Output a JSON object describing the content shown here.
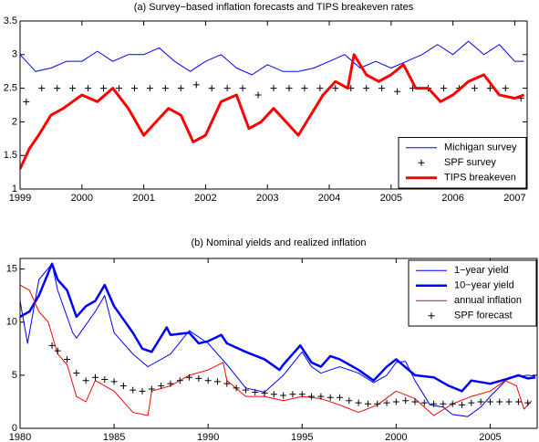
{
  "chart_data": [
    {
      "type": "line",
      "title": "(a) Survey−based inflation forecasts and TIPS breakeven rates",
      "xlim": [
        1999,
        2007.2
      ],
      "ylim": [
        1,
        3.5
      ],
      "xticks": [
        1999,
        2000,
        2001,
        2002,
        2003,
        2004,
        2005,
        2006,
        2007
      ],
      "yticks": [
        1,
        1.5,
        2,
        2.5,
        3,
        3.5
      ],
      "legend": "lower right",
      "series": [
        {
          "name": "Michigan survey",
          "color": "#0000ff",
          "linewidth": 1,
          "marker": "none",
          "x": [
            1999,
            1999.25,
            1999.5,
            1999.75,
            2000,
            2000.25,
            2000.5,
            2000.75,
            2001,
            2001.25,
            2001.5,
            2001.75,
            2002,
            2002.25,
            2002.5,
            2002.75,
            2003,
            2003.25,
            2003.5,
            2003.75,
            2004,
            2004.25,
            2004.5,
            2004.75,
            2005,
            2005.25,
            2005.5,
            2005.75,
            2006,
            2006.25,
            2006.5,
            2006.75,
            2007,
            2007.15
          ],
          "values": [
            3.0,
            2.75,
            2.8,
            2.9,
            2.9,
            3.05,
            2.9,
            3.0,
            3.0,
            3.1,
            2.9,
            2.75,
            2.9,
            3.0,
            2.8,
            2.7,
            2.85,
            2.75,
            2.75,
            2.8,
            2.9,
            3.0,
            2.8,
            2.9,
            2.8,
            2.9,
            3.0,
            3.15,
            3.0,
            3.2,
            3.0,
            3.15,
            2.9,
            2.9
          ]
        },
        {
          "name": "SPF survey",
          "color": "#000000",
          "linewidth": 0,
          "marker": "+",
          "x": [
            1999.1,
            1999.35,
            1999.6,
            1999.85,
            2000.1,
            2000.35,
            2000.6,
            2000.85,
            2001.1,
            2001.35,
            2001.6,
            2001.85,
            2002.1,
            2002.35,
            2002.6,
            2002.85,
            2003.1,
            2003.35,
            2003.6,
            2003.85,
            2004.1,
            2004.35,
            2004.6,
            2004.85,
            2005.1,
            2005.35,
            2005.6,
            2005.85,
            2006.1,
            2006.35,
            2006.6,
            2006.85,
            2007.1
          ],
          "values": [
            2.3,
            2.5,
            2.5,
            2.5,
            2.5,
            2.5,
            2.5,
            2.5,
            2.5,
            2.5,
            2.5,
            2.55,
            2.5,
            2.5,
            2.5,
            2.4,
            2.5,
            2.5,
            2.5,
            2.5,
            2.5,
            2.5,
            2.5,
            2.5,
            2.45,
            2.5,
            2.5,
            2.5,
            2.5,
            2.5,
            2.5,
            2.5,
            2.35
          ]
        },
        {
          "name": "TIPS breakeven",
          "color": "#ff0000",
          "linewidth": 3,
          "marker": "none",
          "x": [
            1999,
            1999.15,
            1999.3,
            1999.5,
            1999.7,
            2000,
            2000.25,
            2000.5,
            2000.75,
            2001,
            2001.2,
            2001.4,
            2001.6,
            2001.8,
            2002,
            2002.25,
            2002.5,
            2002.7,
            2002.9,
            2003.1,
            2003.3,
            2003.5,
            2003.7,
            2003.9,
            2004.1,
            2004.3,
            2004.4,
            2004.6,
            2004.8,
            2005,
            2005.2,
            2005.4,
            2005.6,
            2005.8,
            2006,
            2006.25,
            2006.5,
            2006.75,
            2007,
            2007.15
          ],
          "values": [
            1.3,
            1.6,
            1.8,
            2.1,
            2.2,
            2.4,
            2.3,
            2.5,
            2.2,
            1.8,
            2.0,
            2.2,
            2.1,
            1.7,
            1.8,
            2.3,
            2.4,
            1.9,
            2.0,
            2.2,
            2.0,
            1.8,
            2.1,
            2.4,
            2.6,
            2.5,
            3.0,
            2.7,
            2.6,
            2.7,
            2.85,
            2.5,
            2.5,
            2.3,
            2.4,
            2.6,
            2.7,
            2.4,
            2.35,
            2.4
          ]
        }
      ]
    },
    {
      "type": "line",
      "title": "(b) Nominal yields and realized inflation",
      "xlim": [
        1980,
        2007.5
      ],
      "ylim": [
        0,
        16
      ],
      "xticks": [
        1980,
        1985,
        1990,
        1995,
        2000,
        2005
      ],
      "yticks": [
        0,
        5,
        10,
        15
      ],
      "legend": "upper right",
      "series": [
        {
          "name": "1−year yield",
          "color": "#0000ff",
          "linewidth": 1,
          "marker": "none",
          "x": [
            1980,
            1980.4,
            1981,
            1981.7,
            1982,
            1982.8,
            1983,
            1984,
            1984.5,
            1985,
            1986,
            1986.8,
            1987,
            1988,
            1989,
            1990,
            1991,
            1992,
            1993,
            1994,
            1995,
            1995.5,
            1996,
            1997,
            1998,
            1998.8,
            1999.5,
            2000,
            2000.5,
            2001,
            2001.8,
            2002.5,
            2003,
            2003.8,
            2004.5,
            2005,
            2006,
            2007,
            2007.4
          ],
          "values": [
            12,
            8,
            14,
            15.5,
            13,
            9,
            8.5,
            11,
            12.5,
            9,
            7,
            5.8,
            6,
            7,
            9.2,
            8,
            6,
            3.8,
            3.4,
            5,
            7.2,
            5.8,
            5.2,
            5.8,
            5.2,
            4.3,
            5,
            6.2,
            6.3,
            4.5,
            2.2,
            2,
            1.3,
            1.1,
            2,
            3,
            4.8,
            5,
            4.9
          ]
        },
        {
          "name": "10−year yield",
          "color": "#0000ff",
          "linewidth": 2.5,
          "marker": "none",
          "x": [
            1980,
            1980.5,
            1981,
            1981.7,
            1982,
            1982.5,
            1983,
            1983.5,
            1984,
            1984.5,
            1985,
            1986,
            1986.5,
            1987,
            1987.8,
            1988,
            1989,
            1989.5,
            1990,
            1990.7,
            1991,
            1992,
            1993,
            1993.8,
            1994,
            1994.9,
            1995.5,
            1996,
            1996.5,
            1997,
            1998,
            1998.8,
            1999.5,
            2000,
            2001,
            2002,
            2002.8,
            2003.5,
            2004,
            2005,
            2006,
            2006.5,
            2007,
            2007.4
          ],
          "values": [
            10.5,
            11,
            12.5,
            15.5,
            14,
            13,
            10.5,
            11.5,
            12,
            13.5,
            11.5,
            9,
            7.5,
            7.2,
            9.5,
            8.8,
            9,
            8,
            8.2,
            8.8,
            8,
            7.2,
            6.5,
            5.5,
            6,
            7.8,
            6.2,
            5.8,
            6.8,
            6.5,
            5.5,
            4.5,
            5.8,
            6.5,
            5,
            4.8,
            4,
            3.5,
            4.5,
            4.2,
            4.7,
            5,
            4.7,
            4.8
          ]
        },
        {
          "name": "annual inflation",
          "color": "#ff0000",
          "linewidth": 1,
          "marker": "none",
          "x": [
            1980,
            1980.5,
            1981,
            1981.5,
            1982,
            1982.5,
            1983,
            1983.5,
            1984,
            1985,
            1986,
            1986.8,
            1987,
            1988,
            1989,
            1990,
            1990.8,
            1991,
            1992,
            1993,
            1994,
            1995,
            1996,
            1997,
            1998,
            1999,
            2000,
            2001,
            2002,
            2003,
            2004,
            2005,
            2005.8,
            2006.4,
            2006.8,
            2007.2
          ],
          "values": [
            13.5,
            13,
            11,
            10,
            7,
            6,
            3,
            2.5,
            4.5,
            3.5,
            1.5,
            1.2,
            3.5,
            4,
            5,
            5.5,
            6.2,
            4.5,
            3,
            3,
            2.6,
            3,
            2.8,
            2.2,
            1.5,
            2.2,
            3.5,
            2.8,
            1.2,
            2.3,
            3,
            3.5,
            4.5,
            4,
            1.8,
            2.6
          ]
        },
        {
          "name": "SPF forecast",
          "color": "#000000",
          "linewidth": 0,
          "marker": "+",
          "x": [
            1981.7,
            1982,
            1982.5,
            1983,
            1983.5,
            1984,
            1984.5,
            1985,
            1985.5,
            1986,
            1986.5,
            1987,
            1987.5,
            1988,
            1988.5,
            1989,
            1989.5,
            1990,
            1990.5,
            1991,
            1991.5,
            1992,
            1992.5,
            1993,
            1993.5,
            1994,
            1994.5,
            1995,
            1995.5,
            1996,
            1996.5,
            1997,
            1997.5,
            1998,
            1998.5,
            1999,
            1999.5,
            2000,
            2000.5,
            2001,
            2001.5,
            2002,
            2002.5,
            2003,
            2003.5,
            2004,
            2004.5,
            2005,
            2005.5,
            2006,
            2006.5,
            2007
          ],
          "values": [
            7.8,
            7.3,
            6.5,
            5.2,
            4.5,
            4.8,
            4.6,
            4.4,
            4.0,
            3.6,
            3.5,
            3.7,
            4.0,
            4.2,
            4.5,
            4.8,
            4.7,
            4.5,
            4.4,
            4.2,
            3.8,
            3.6,
            3.4,
            3.3,
            3.2,
            3.1,
            3.2,
            3.2,
            3.0,
            3.0,
            2.9,
            2.9,
            2.6,
            2.4,
            2.3,
            2.3,
            2.4,
            2.5,
            2.6,
            2.5,
            2.4,
            2.3,
            2.3,
            2.3,
            2.2,
            2.4,
            2.5,
            2.5,
            2.5,
            2.5,
            2.5,
            2.4
          ]
        }
      ]
    }
  ]
}
